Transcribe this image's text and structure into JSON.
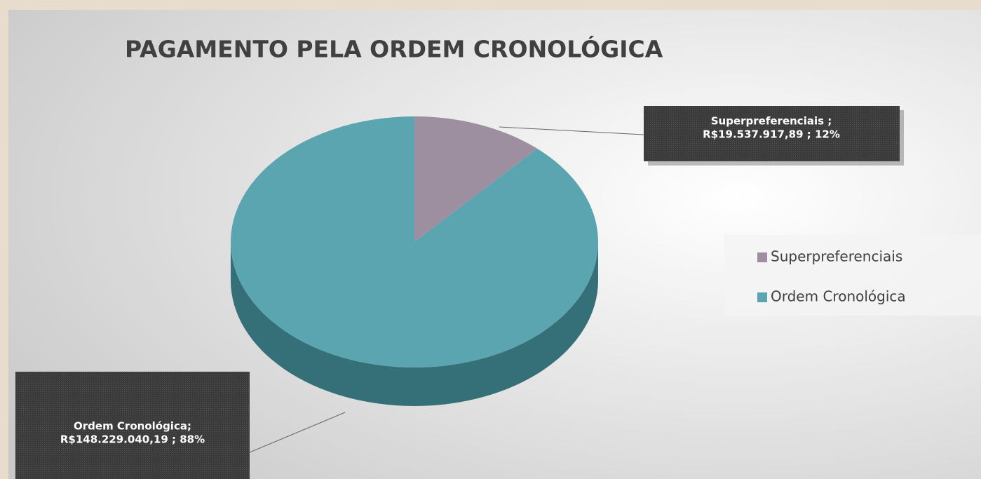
{
  "chart_data": {
    "type": "pie",
    "title": "PAGAMENTO PELA ORDEM CRONOLÓGICA",
    "categories": [
      "Superpreferenciais",
      "Ordem Cronológica"
    ],
    "values": [
      19537917.89,
      148229040.19
    ],
    "value_labels": [
      [
        "Superpreferenciais ;",
        "R$19.537.917,89 ; 12%"
      ],
      [
        "Ordem Cronológica;",
        "R$148.229.040,19 ; 88%"
      ]
    ],
    "colors": [
      "#9d8f9f",
      "#5ba5b1"
    ],
    "legend": "right"
  }
}
